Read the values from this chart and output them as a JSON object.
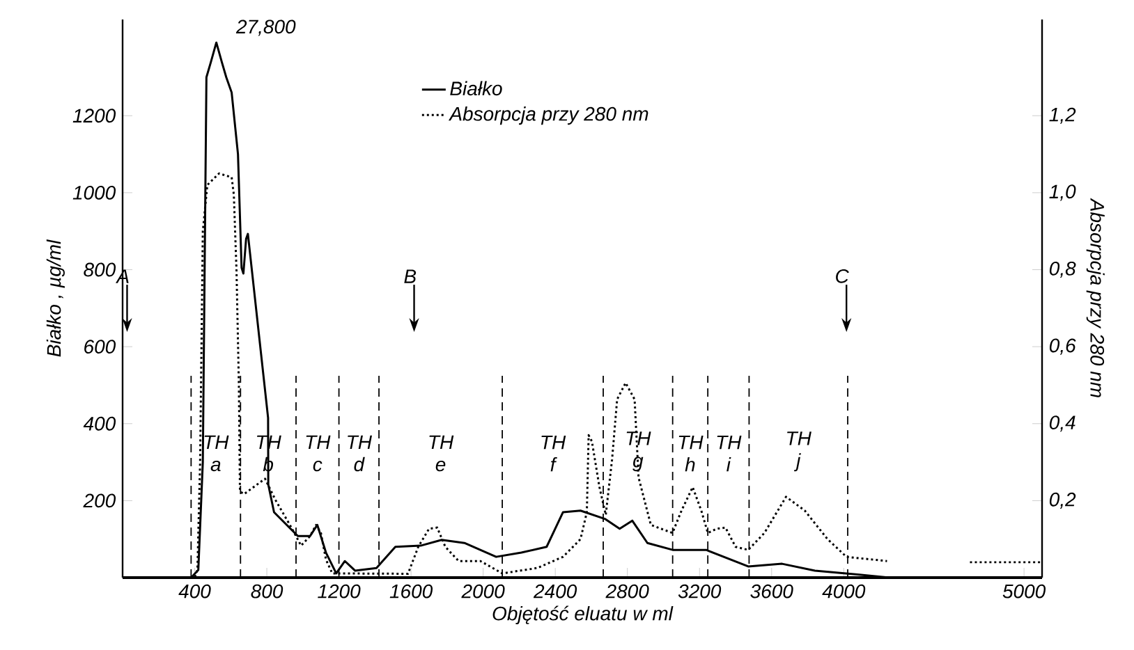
{
  "chart_data": {
    "type": "line",
    "xlabel": "Objętość eluatu w ml",
    "ylabel": "Białko , µg/ml",
    "y2label": "Absorpcja przy 280 nm",
    "xlim": [
      0,
      5100
    ],
    "xticks": [
      400,
      800,
      1200,
      1600,
      2000,
      2400,
      2800,
      3200,
      3600,
      4000,
      5000
    ],
    "ylim": [
      0,
      1450
    ],
    "yticks": [
      200,
      400,
      600,
      800,
      1000,
      1200
    ],
    "y2lim": [
      0,
      1.45
    ],
    "y2ticks": [
      {
        "value": 0.2,
        "label": "0,2"
      },
      {
        "value": 0.4,
        "label": "0,4"
      },
      {
        "value": 0.6,
        "label": "0,6"
      },
      {
        "value": 0.8,
        "label": "0,8"
      },
      {
        "value": 1.0,
        "label": "1,0"
      },
      {
        "value": 1.2,
        "label": "1,2"
      }
    ],
    "legend": "top",
    "series": [
      {
        "name": "Białko",
        "color": "#000000",
        "line_style": "solid",
        "x": [
          0,
          380,
          420,
          445,
          455,
          465,
          490,
          520,
          550,
          575,
          605,
          640,
          660,
          670,
          685,
          695,
          807,
          808,
          840,
          972,
          1040,
          1080,
          1128,
          1185,
          1233,
          1290,
          1408,
          1513,
          1653,
          1770,
          1896,
          2072,
          2212,
          2352,
          2443,
          2540,
          2678,
          2757,
          2827,
          2911,
          3051,
          3237,
          3470,
          3658,
          3840,
          4077,
          4250,
          4400,
          4700,
          5100
        ],
        "values": [
          0,
          0,
          20,
          300,
          800,
          1300,
          1340,
          1390,
          1340,
          1300,
          1260,
          1100,
          805,
          790,
          880,
          893,
          415,
          242,
          170,
          108,
          108,
          137,
          65,
          11,
          43,
          18,
          25,
          80,
          83,
          98,
          90,
          54,
          65,
          80,
          170,
          174,
          152,
          127,
          148,
          90,
          72,
          72,
          29,
          36,
          18,
          8,
          0,
          null,
          0,
          0
        ]
      },
      {
        "name": "Absorpcja przy 280 nm",
        "color": "#000000",
        "line_style": "dotted",
        "axis": "y2",
        "x": [
          0,
          400,
          415,
          430,
          445,
          470,
          535,
          605,
          617,
          632,
          645,
          651,
          674,
          790,
          850,
          940,
          990,
          1040,
          1073,
          1100,
          1128,
          1163,
          1583,
          1640,
          1700,
          1745,
          1790,
          1864,
          1985,
          2106,
          2300,
          2443,
          2540,
          2575,
          2585,
          2603,
          2645,
          2680,
          2715,
          2743,
          2790,
          2840,
          2862,
          2930,
          3050,
          3100,
          3162,
          3210,
          3246,
          3295,
          3344,
          3400,
          3470,
          3560,
          3680,
          3784,
          3910,
          4015,
          4240,
          4400,
          4700,
          5100
        ],
        "values": [
          0,
          0,
          0.02,
          0.3,
          0.9,
          1.02,
          1.05,
          1.04,
          0.995,
          0.795,
          0.5,
          0.224,
          0.217,
          0.257,
          0.2,
          0.127,
          0.083,
          0.108,
          0.137,
          0.116,
          0.047,
          0.011,
          0.01,
          0.08,
          0.127,
          0.13,
          0.08,
          0.043,
          0.043,
          0.011,
          0.025,
          0.054,
          0.1,
          0.17,
          0.37,
          0.354,
          0.235,
          0.163,
          0.307,
          0.463,
          0.506,
          0.463,
          0.26,
          0.137,
          0.116,
          0.174,
          0.235,
          0.174,
          0.116,
          0.127,
          0.13,
          0.08,
          0.072,
          0.116,
          0.21,
          0.174,
          0.1,
          0.054,
          0.043,
          null,
          0.04,
          0.04
        ]
      }
    ],
    "ref_lines": [
      {
        "axis": "x",
        "value": 380,
        "line_style": "dashed"
      },
      {
        "axis": "x",
        "value": 654,
        "line_style": "dashed"
      },
      {
        "axis": "x",
        "value": 962,
        "line_style": "dashed"
      },
      {
        "axis": "x",
        "value": 1200,
        "line_style": "dashed"
      },
      {
        "axis": "x",
        "value": 1422,
        "line_style": "dashed"
      },
      {
        "axis": "x",
        "value": 2106,
        "line_style": "dashed"
      },
      {
        "axis": "x",
        "value": 2666,
        "line_style": "dashed"
      },
      {
        "axis": "x",
        "value": 3051,
        "line_style": "dashed"
      },
      {
        "axis": "x",
        "value": 3246,
        "line_style": "dashed"
      },
      {
        "axis": "x",
        "value": 3475,
        "line_style": "dashed"
      },
      {
        "axis": "x",
        "value": 4022,
        "line_style": "dashed"
      },
      {
        "axis": "x",
        "value": 25,
        "label": "A"
      },
      {
        "axis": "x",
        "value": 1617,
        "label": "B"
      },
      {
        "axis": "x",
        "value": 4015,
        "label": "C"
      }
    ],
    "annotations": [
      "27,800",
      "TH a",
      "TH b",
      "TH c",
      "TH d",
      "TH e",
      "TH f",
      "TH g",
      "TH h",
      "TH i",
      "TH j"
    ]
  }
}
